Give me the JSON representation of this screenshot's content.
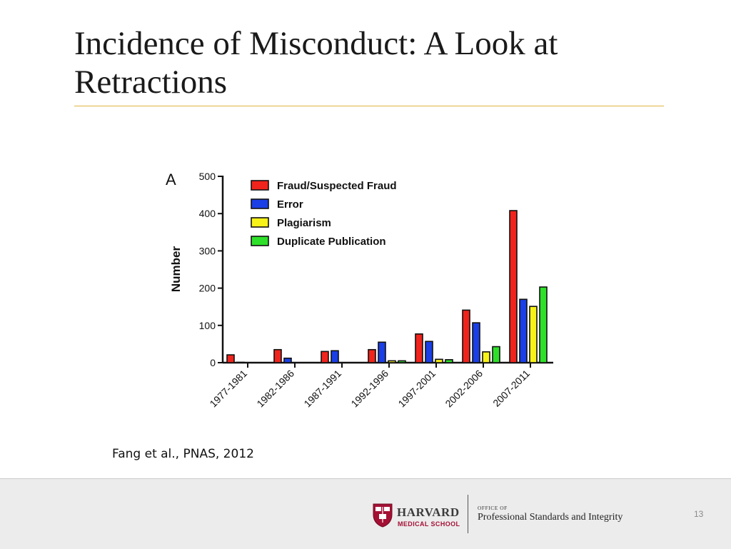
{
  "slide": {
    "title": "Incidence of Misconduct:  A Look at Retractions",
    "citation": "Fang et al., PNAS, 2012",
    "page_number": "13"
  },
  "footer": {
    "harvard": "HARVARD",
    "school": "MEDICAL SCHOOL",
    "office_label": "OFFICE OF",
    "office_name": "Professional Standards and Integrity",
    "colors": {
      "crimson": "#a41034"
    }
  },
  "chart_data": {
    "type": "bar",
    "panel_label": "A",
    "ylabel": "Number",
    "xlabel": "",
    "ylim": [
      0,
      500
    ],
    "yticks": [
      0,
      100,
      200,
      300,
      400,
      500
    ],
    "categories": [
      "1977-1981",
      "1982-1986",
      "1987-1991",
      "1992-1996",
      "1997-2001",
      "2002-2006",
      "2007-2011"
    ],
    "series": [
      {
        "name": "Fraud/Suspected Fraud",
        "color": "#f0241c",
        "values": [
          21,
          35,
          30,
          35,
          77,
          141,
          408
        ]
      },
      {
        "name": "Error",
        "color": "#1a3fe6",
        "values": [
          1,
          12,
          32,
          55,
          57,
          107,
          170
        ]
      },
      {
        "name": "Plagiarism",
        "color": "#f7f218",
        "values": [
          0,
          0,
          0,
          5,
          9,
          29,
          151
        ]
      },
      {
        "name": "Duplicate Publication",
        "color": "#2fe02a",
        "values": [
          0,
          0,
          0,
          5,
          8,
          43,
          203
        ]
      }
    ],
    "legend_position": "top-left",
    "grid": false
  }
}
